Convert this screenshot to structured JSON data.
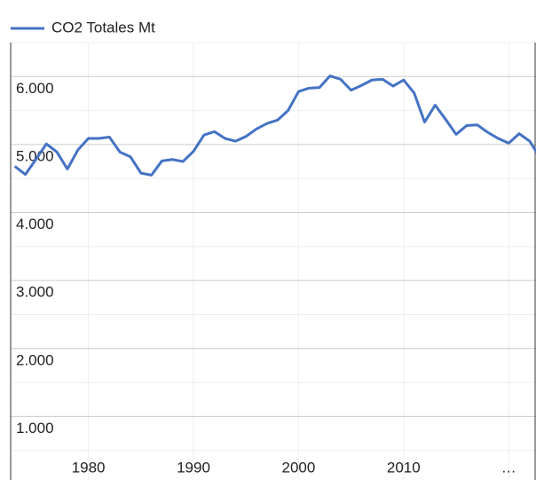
{
  "chart_data": {
    "type": "line",
    "x": [
      1973,
      1974,
      1975,
      1976,
      1977,
      1978,
      1979,
      1980,
      1981,
      1982,
      1983,
      1984,
      1985,
      1986,
      1987,
      1988,
      1989,
      1990,
      1991,
      1992,
      1993,
      1994,
      1995,
      1996,
      1997,
      1998,
      1999,
      2000,
      2001,
      2002,
      2003,
      2004,
      2005,
      2006,
      2007,
      2008,
      2009,
      2010,
      2011,
      2012,
      2013,
      2014,
      2015,
      2016,
      2017,
      2018,
      2019,
      2020,
      2021,
      2022,
      2023
    ],
    "series": [
      {
        "name": "CO2 Totales Mt",
        "color": "#4472c4",
        "values": [
          4680,
          4560,
          4780,
          5010,
          4890,
          4640,
          4920,
          5090,
          5090,
          5110,
          4890,
          4820,
          4580,
          4550,
          4760,
          4780,
          4750,
          4900,
          5140,
          5190,
          5090,
          5050,
          5120,
          5230,
          5310,
          5360,
          5500,
          5780,
          5830,
          5840,
          6010,
          5960,
          5800,
          5870,
          5950,
          5960,
          5860,
          5950,
          5760,
          5330,
          5580,
          5370,
          5150,
          5280,
          5290,
          5180,
          5090,
          5020,
          5160,
          5050,
          4800
        ]
      }
    ],
    "xlim": [
      1972.6,
      2022.6
    ],
    "xticks": [
      1980,
      1990,
      2000,
      2010,
      {
        "value": 2020,
        "label": "…"
      }
    ],
    "ylim": [
      0,
      6500
    ],
    "yticks": [
      {
        "value": 1000,
        "label": "1.000"
      },
      {
        "value": 2000,
        "label": "2.000"
      },
      {
        "value": 3000,
        "label": "3.000"
      },
      {
        "value": 4000,
        "label": "4.000"
      },
      {
        "value": 5000,
        "label": "5.000"
      },
      {
        "value": 6000,
        "label": "6.000"
      }
    ],
    "minor_yticks": [
      500,
      1500,
      2500,
      3500,
      4500,
      5500,
      6500
    ],
    "grid": true,
    "legend": "top"
  }
}
